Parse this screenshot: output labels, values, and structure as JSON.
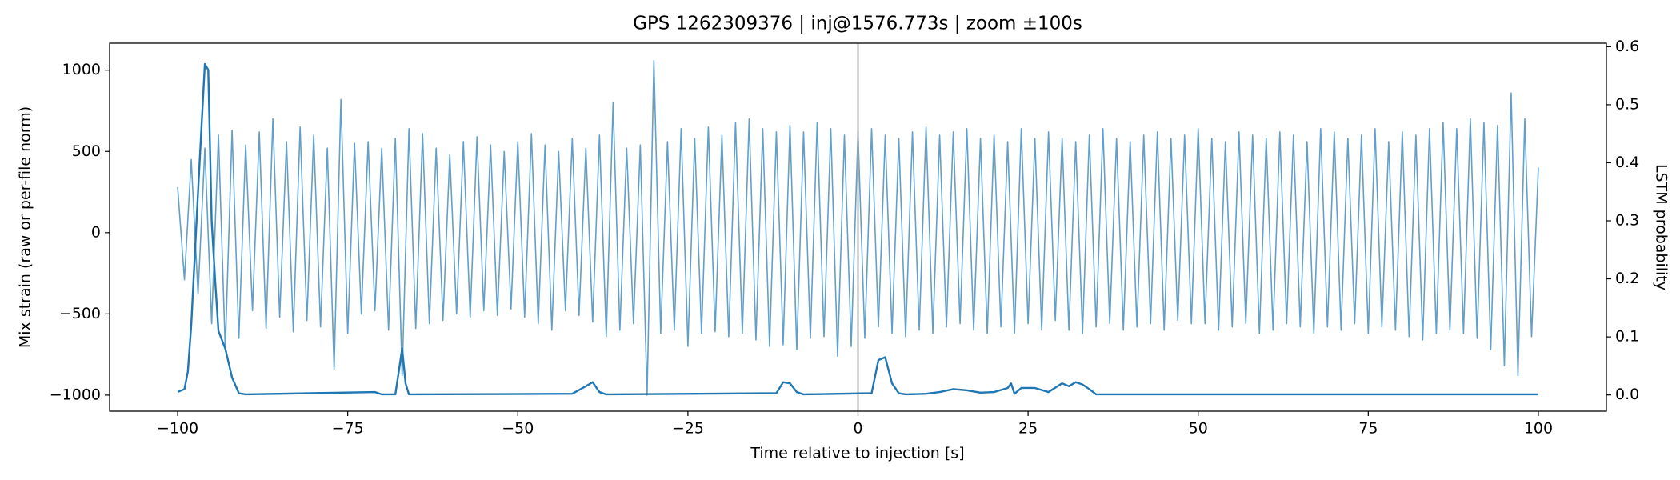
{
  "chart_data": {
    "type": "line",
    "title": "GPS 1262309376 | inj@1576.773s | zoom ±100s",
    "xlabel": "Time relative to injection [s]",
    "ylabel": "Mix strain (raw or per-file norm)",
    "y2label": "LSTM probability",
    "xlim": [
      -110,
      110
    ],
    "xticks": [
      {
        "value": -100,
        "label": "−100"
      },
      {
        "value": -75,
        "label": "−75"
      },
      {
        "value": -50,
        "label": "−50"
      },
      {
        "value": -25,
        "label": "−25"
      },
      0,
      25,
      50,
      75,
      100
    ],
    "ylim": [
      -1099,
      1166
    ],
    "yticks": [
      {
        "value": -1000,
        "label": "−1000"
      },
      {
        "value": -500,
        "label": "−500"
      },
      0,
      500,
      1000
    ],
    "y2lim": [
      -0.028,
      0.606
    ],
    "y2ticks": [
      {
        "value": 0,
        "label": "0.0"
      },
      0.1,
      0.2,
      0.3,
      0.4,
      0.5,
      0.6
    ],
    "vline": {
      "x": 0,
      "color": "#aaaaaa"
    },
    "series": [
      {
        "color": "#1f77b4",
        "opacity": 0.7,
        "x": [
          -100,
          -99,
          -98,
          -97,
          -96,
          -95,
          -94,
          -93,
          -92,
          -91,
          -90,
          -89,
          -88,
          -87,
          -86,
          -85,
          -84,
          -83,
          -82,
          -81,
          -80,
          -79,
          -78,
          -77,
          -76,
          -75,
          -74,
          -73,
          -72,
          -71,
          -70,
          -69,
          -68,
          -67,
          -66,
          -65,
          -64,
          -63,
          -62,
          -61,
          -60,
          -59,
          -58,
          -57,
          -56,
          -55,
          -54,
          -53,
          -52,
          -51,
          -50,
          -49,
          -48,
          -47,
          -46,
          -45,
          -44,
          -43,
          -42,
          -41,
          -40,
          -39,
          -38,
          -37,
          -36,
          -35,
          -34,
          -33,
          -32,
          -31,
          -30,
          -29,
          -28,
          -27,
          -26,
          -25,
          -24,
          -23,
          -22,
          -21,
          -20,
          -19,
          -18,
          -17,
          -16,
          -15,
          -14,
          -13,
          -12,
          -11,
          -10,
          -9,
          -8,
          -7,
          -6,
          -5,
          -4,
          -3,
          -2,
          -1,
          0,
          1,
          2,
          3,
          4,
          5,
          6,
          7,
          8,
          9,
          10,
          11,
          12,
          13,
          14,
          15,
          16,
          17,
          18,
          19,
          20,
          21,
          22,
          23,
          24,
          25,
          26,
          27,
          28,
          29,
          30,
          31,
          32,
          33,
          34,
          35,
          36,
          37,
          38,
          39,
          40,
          41,
          42,
          43,
          44,
          45,
          46,
          47,
          48,
          49,
          50,
          51,
          52,
          53,
          54,
          55,
          56,
          57,
          58,
          59,
          60,
          61,
          62,
          63,
          64,
          65,
          66,
          67,
          68,
          69,
          70,
          71,
          72,
          73,
          74,
          75,
          76,
          77,
          78,
          79,
          80,
          81,
          82,
          83,
          84,
          85,
          86,
          87,
          88,
          89,
          90,
          91,
          92,
          93,
          94,
          95,
          96,
          97,
          98,
          99,
          100
        ],
        "values": [
          280,
          -290,
          450,
          -380,
          520,
          -560,
          600,
          -720,
          630,
          -650,
          540,
          -480,
          620,
          -590,
          700,
          -520,
          560,
          -610,
          650,
          -540,
          600,
          -580,
          520,
          -840,
          820,
          -620,
          550,
          -500,
          560,
          -480,
          520,
          -600,
          580,
          -880,
          640,
          -590,
          610,
          -560,
          520,
          -540,
          480,
          -500,
          560,
          -520,
          590,
          -480,
          540,
          -510,
          500,
          -470,
          560,
          -520,
          610,
          -560,
          540,
          -600,
          500,
          -480,
          580,
          -510,
          520,
          -550,
          600,
          -640,
          800,
          -600,
          520,
          -560,
          540,
          -1000,
          1060,
          -620,
          560,
          -600,
          640,
          -700,
          580,
          -620,
          650,
          -610,
          600,
          -640,
          680,
          -620,
          700,
          -660,
          640,
          -700,
          620,
          -690,
          660,
          -720,
          620,
          -650,
          680,
          -640,
          640,
          -760,
          600,
          -700,
          620,
          -650,
          640,
          -580,
          600,
          -620,
          580,
          -640,
          620,
          -600,
          650,
          -620,
          600,
          -580,
          620,
          -560,
          640,
          -600,
          580,
          -620,
          600,
          -580,
          560,
          -620,
          640,
          -560,
          580,
          -600,
          620,
          -540,
          580,
          -600,
          560,
          -620,
          600,
          -580,
          640,
          -560,
          580,
          -600,
          560,
          -580,
          600,
          -560,
          620,
          -600,
          580,
          -540,
          600,
          -560,
          640,
          -560,
          580,
          -600,
          560,
          -580,
          620,
          -560,
          600,
          -620,
          580,
          -600,
          620,
          -560,
          600,
          -580,
          560,
          -620,
          640,
          -580,
          620,
          -600,
          580,
          -560,
          600,
          -620,
          640,
          -580,
          560,
          -600,
          620,
          -640,
          600,
          -660,
          640,
          -620,
          680,
          -600,
          640,
          -620,
          700,
          -650,
          680,
          -720,
          660,
          -820,
          860,
          -880,
          700,
          -640,
          400
        ]
      },
      {
        "color": "#1f77b4",
        "opacity": 1,
        "axis": "y2",
        "x": [
          -100,
          -99,
          -98.5,
          -98,
          -97,
          -96,
          -95.5,
          -95,
          -94.5,
          -94,
          -93,
          -92,
          -91,
          -90,
          -71,
          -70,
          -68,
          -67.5,
          -67,
          -66.5,
          -66,
          -42,
          -40,
          -39,
          -38,
          -37,
          -12,
          -11,
          -10,
          -9,
          -8,
          2,
          3,
          4,
          5,
          6,
          7,
          10,
          12,
          14,
          16,
          18,
          20,
          22,
          22.5,
          23,
          24,
          26,
          28,
          30,
          31,
          32,
          33,
          34,
          35,
          100
        ],
        "values": [
          0.005,
          0.01,
          0.04,
          0.12,
          0.35,
          0.57,
          0.56,
          0.3,
          0.2,
          0.11,
          0.08,
          0.03,
          0.003,
          0.001,
          0.005,
          0.001,
          0.001,
          0.04,
          0.08,
          0.02,
          0.001,
          0.002,
          0.015,
          0.022,
          0.005,
          0.001,
          0.003,
          0.022,
          0.02,
          0.005,
          0.001,
          0.003,
          0.06,
          0.065,
          0.02,
          0.003,
          0.001,
          0.002,
          0.005,
          0.01,
          0.008,
          0.004,
          0.005,
          0.012,
          0.02,
          0.002,
          0.012,
          0.012,
          0.005,
          0.02,
          0.015,
          0.022,
          0.018,
          0.01,
          0.001,
          0.001
        ]
      }
    ]
  }
}
